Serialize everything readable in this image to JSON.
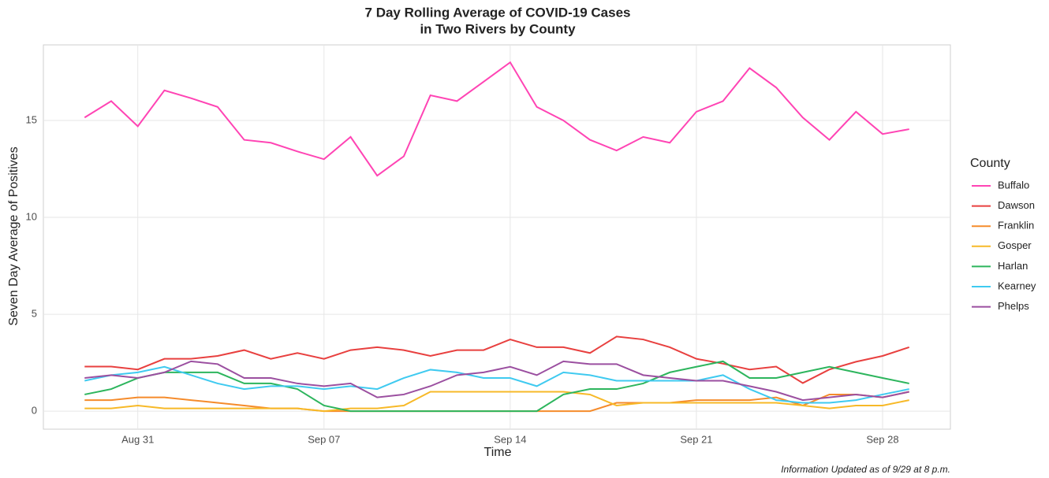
{
  "chart_data": {
    "type": "line",
    "title": [
      "7 Day Rolling Average of COVID-19 Cases",
      "in Two Rivers by County"
    ],
    "x_label": "Time",
    "y_label": "Seven Day Average of Positives",
    "legend_title": "County",
    "legend": "right",
    "annotation": "Information Updated as of 9/29 at 8 p.m.",
    "grid": true,
    "x": [
      "Aug 29",
      "Aug 30",
      "Aug 31",
      "Sep 01",
      "Sep 02",
      "Sep 03",
      "Sep 04",
      "Sep 05",
      "Sep 06",
      "Sep 07",
      "Sep 08",
      "Sep 09",
      "Sep 10",
      "Sep 11",
      "Sep 12",
      "Sep 13",
      "Sep 14",
      "Sep 15",
      "Sep 16",
      "Sep 17",
      "Sep 18",
      "Sep 19",
      "Sep 20",
      "Sep 21",
      "Sep 22",
      "Sep 23",
      "Sep 24",
      "Sep 25",
      "Sep 26",
      "Sep 27",
      "Sep 28",
      "Sep 29"
    ],
    "xticks": [
      "Aug 31",
      "Sep 07",
      "Sep 14",
      "Sep 21",
      "Sep 28"
    ],
    "ylim": [
      -0.93,
      18.9
    ],
    "yticks": [
      0,
      5,
      10,
      15
    ],
    "series": [
      {
        "name": "Buffalo",
        "color": "#ff44b4",
        "values": [
          15.15,
          16.0,
          14.7,
          16.55,
          16.15,
          15.7,
          14.0,
          13.85,
          13.4,
          13.0,
          14.15,
          12.15,
          13.15,
          16.3,
          16.0,
          17.0,
          18.0,
          15.7,
          15.0,
          14.0,
          13.45,
          14.15,
          13.85,
          15.45,
          16.0,
          17.7,
          16.7,
          15.15,
          14.0,
          15.45,
          14.3,
          14.55
        ]
      },
      {
        "name": "Dawson",
        "color": "#e8403f",
        "values": [
          2.3,
          2.3,
          2.15,
          2.7,
          2.7,
          2.85,
          3.15,
          2.7,
          3.0,
          2.7,
          3.15,
          3.3,
          3.15,
          2.85,
          3.15,
          3.15,
          3.7,
          3.3,
          3.3,
          3.0,
          3.85,
          3.7,
          3.3,
          2.7,
          2.45,
          2.15,
          2.3,
          1.45,
          2.15,
          2.55,
          2.85,
          3.3
        ]
      },
      {
        "name": "Franklin",
        "color": "#f58b2b",
        "values": [
          0.57,
          0.57,
          0.71,
          0.71,
          0.57,
          0.43,
          0.29,
          0.14,
          0.14,
          0,
          0,
          0,
          0,
          0,
          0,
          0,
          0,
          0,
          0,
          0,
          0.43,
          0.43,
          0.43,
          0.57,
          0.57,
          0.57,
          0.71,
          0.29,
          0.86,
          0.86,
          0.71,
          1.0
        ]
      },
      {
        "name": "Gosper",
        "color": "#f7b928",
        "values": [
          0.14,
          0.14,
          0.29,
          0.14,
          0.14,
          0.14,
          0.14,
          0.14,
          0.14,
          0,
          0.14,
          0.14,
          0.29,
          1.0,
          1.0,
          1.0,
          1.0,
          1.0,
          1.0,
          0.86,
          0.29,
          0.43,
          0.43,
          0.43,
          0.43,
          0.43,
          0.43,
          0.29,
          0.14,
          0.29,
          0.29,
          0.57
        ]
      },
      {
        "name": "Harlan",
        "color": "#2db55d",
        "values": [
          0.86,
          1.14,
          1.71,
          2.0,
          2.0,
          2.0,
          1.43,
          1.43,
          1.14,
          0.29,
          0,
          0,
          0,
          0,
          0,
          0,
          0,
          0,
          0.86,
          1.14,
          1.14,
          1.43,
          2.0,
          2.29,
          2.57,
          1.71,
          1.71,
          2.0,
          2.29,
          2.0,
          1.71,
          1.43
        ]
      },
      {
        "name": "Kearney",
        "color": "#3fcaf0",
        "values": [
          1.57,
          1.86,
          2.0,
          2.29,
          1.86,
          1.43,
          1.14,
          1.29,
          1.29,
          1.14,
          1.29,
          1.14,
          1.71,
          2.14,
          2.0,
          1.71,
          1.71,
          1.29,
          2.0,
          1.86,
          1.57,
          1.57,
          1.57,
          1.57,
          1.86,
          1.14,
          0.57,
          0.43,
          0.43,
          0.57,
          0.86,
          1.14
        ]
      },
      {
        "name": "Phelps",
        "color": "#9b4fa0",
        "values": [
          1.71,
          1.86,
          1.71,
          2.0,
          2.57,
          2.43,
          1.71,
          1.71,
          1.43,
          1.29,
          1.43,
          0.71,
          0.86,
          1.29,
          1.86,
          2.0,
          2.29,
          1.86,
          2.57,
          2.43,
          2.43,
          1.86,
          1.71,
          1.57,
          1.57,
          1.29,
          1.0,
          0.57,
          0.71,
          0.86,
          0.71,
          1.0
        ]
      }
    ]
  }
}
